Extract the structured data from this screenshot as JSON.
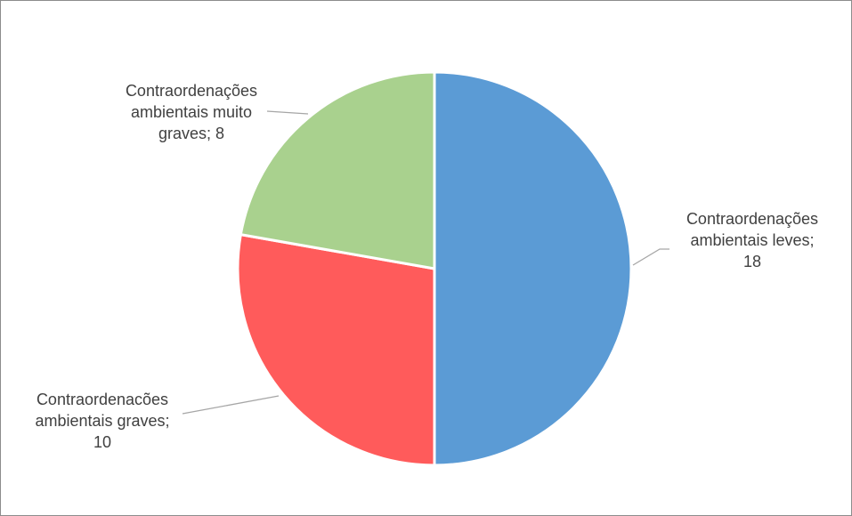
{
  "chart_data": {
    "type": "pie",
    "categories": [
      "Contraordenações ambientais leves",
      "Contraordenações ambientais graves",
      "Contraordenações ambientais muito graves"
    ],
    "values": [
      18,
      10,
      8
    ],
    "colors": [
      "#5b9bd5",
      "#ff5b5b",
      "#a9d18e"
    ],
    "data_labels": {
      "leves": {
        "line1": "Contraordenações",
        "line2": "ambientais leves;",
        "line3": "18"
      },
      "graves": {
        "line1": "Contraordenacões",
        "line2": "ambientais graves;",
        "line3": "10"
      },
      "muito_graves": {
        "line1": "Contraordenações",
        "line2": "ambientais muito",
        "line3": "graves; 8"
      }
    },
    "start_angle": "12 o'clock",
    "direction": "clockwise",
    "legend": "none"
  }
}
